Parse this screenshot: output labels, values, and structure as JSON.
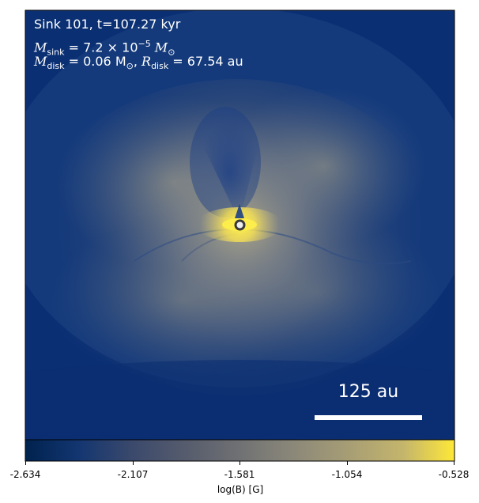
{
  "annotation": {
    "line1": "Sink 101, t=107.27 kyr",
    "msink_prefix": "M",
    "msink_sub": "sink",
    "msink_value": " = 7.2 × 10",
    "msink_exp": "−5",
    "msink_unit": " M",
    "msink_unit_sub": "⊙",
    "mdisk_prefix": "M",
    "mdisk_sub": "disk",
    "mdisk_value": " = 0.06 M",
    "mdisk_unit_sub": "⊙",
    "rdisk_sep": ", ",
    "rdisk_prefix": "R",
    "rdisk_sub": "disk",
    "rdisk_value": " = 67.54 au"
  },
  "scalebar": {
    "label": "125 au"
  },
  "colorbar": {
    "ticks": [
      "-2.634",
      "-2.107",
      "-1.581",
      "-1.054",
      "-0.528"
    ],
    "label": "log(B) [G]",
    "colormap": "cividis",
    "low_color": "#00224e",
    "mid_color": "#7c7b78",
    "high_color": "#fee838"
  }
}
